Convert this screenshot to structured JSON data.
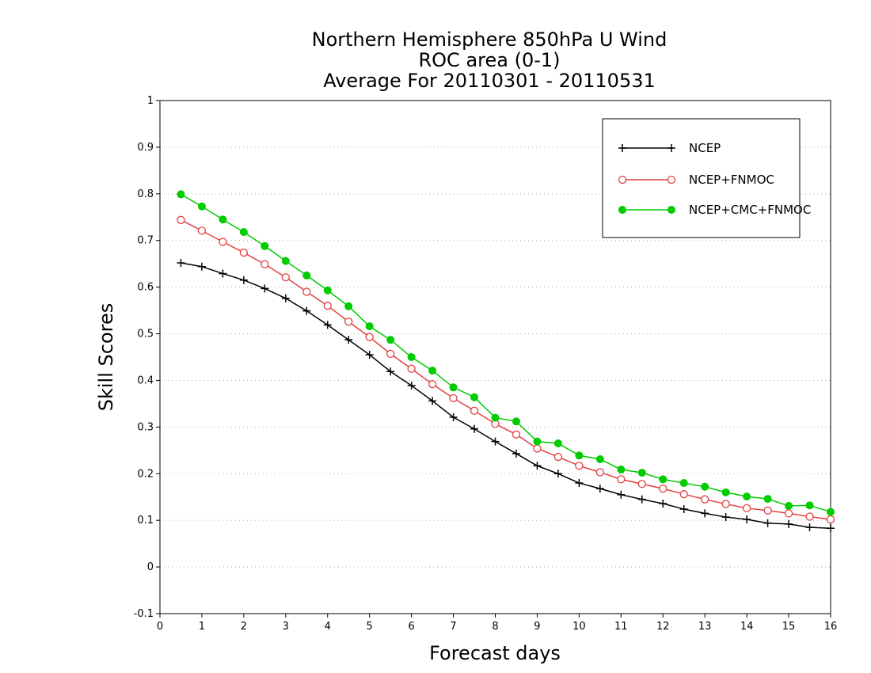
{
  "chart_data": {
    "type": "line",
    "title_lines": [
      "Northern Hemisphere 850hPa U Wind",
      "ROC area (0-1)",
      "Average For 20110301 - 20110531"
    ],
    "xlabel": "Forecast days",
    "ylabel": "Skill Scores",
    "xlim": [
      0,
      16
    ],
    "ylim": [
      -0.1,
      1
    ],
    "xticks": [
      0,
      1,
      2,
      3,
      4,
      5,
      6,
      7,
      8,
      9,
      10,
      11,
      12,
      13,
      14,
      15,
      16
    ],
    "xtick_labels": [
      "0",
      "1",
      "2",
      "3",
      "4",
      "5",
      "6",
      "7",
      "8",
      "9",
      "10",
      "11",
      "12",
      "13",
      "14",
      "15",
      "16"
    ],
    "yticks": [
      -0.1,
      0,
      0.1,
      0.2,
      0.3,
      0.4,
      0.5,
      0.6,
      0.7,
      0.8,
      0.9,
      1
    ],
    "ytick_labels": [
      "-0.1",
      "0",
      "0.1",
      "0.2",
      "0.3",
      "0.4",
      "0.5",
      "0.6",
      "0.7",
      "0.8",
      "0.9",
      "1"
    ],
    "grid": "horizontal dotted",
    "legend_position": "top-right",
    "x": [
      0.5,
      1,
      1.5,
      2,
      2.5,
      3,
      3.5,
      4,
      4.5,
      5,
      5.5,
      6,
      6.5,
      7,
      7.5,
      8,
      8.5,
      9,
      9.5,
      10,
      10.5,
      11,
      11.5,
      12,
      12.5,
      13,
      13.5,
      14,
      14.5,
      15,
      15.5,
      16
    ],
    "series": [
      {
        "name": "NCEP",
        "color": "#000000",
        "marker": "plus",
        "values": [
          0.652,
          0.644,
          0.629,
          0.615,
          0.597,
          0.576,
          0.549,
          0.519,
          0.487,
          0.455,
          0.419,
          0.389,
          0.356,
          0.321,
          0.296,
          0.269,
          0.243,
          0.217,
          0.2,
          0.18,
          0.168,
          0.155,
          0.145,
          0.136,
          0.124,
          0.115,
          0.107,
          0.102,
          0.094,
          0.092,
          0.085,
          0.083
        ]
      },
      {
        "name": "NCEP+FNMOC",
        "color": "#e34040",
        "marker": "open-circle",
        "values": [
          0.744,
          0.721,
          0.697,
          0.674,
          0.649,
          0.621,
          0.59,
          0.56,
          0.526,
          0.493,
          0.457,
          0.425,
          0.392,
          0.362,
          0.335,
          0.307,
          0.284,
          0.254,
          0.236,
          0.217,
          0.203,
          0.188,
          0.178,
          0.168,
          0.156,
          0.145,
          0.135,
          0.126,
          0.121,
          0.115,
          0.108,
          0.102
        ]
      },
      {
        "name": "NCEP+CMC+FNMOC",
        "color": "#00cc00",
        "marker": "filled-circle",
        "values": [
          0.799,
          0.773,
          0.745,
          0.718,
          0.688,
          0.656,
          0.625,
          0.593,
          0.559,
          0.516,
          0.487,
          0.45,
          0.421,
          0.385,
          0.364,
          0.32,
          0.312,
          0.269,
          0.265,
          0.239,
          0.231,
          0.209,
          0.202,
          0.188,
          0.18,
          0.172,
          0.16,
          0.151,
          0.146,
          0.131,
          0.132,
          0.118
        ]
      }
    ]
  }
}
